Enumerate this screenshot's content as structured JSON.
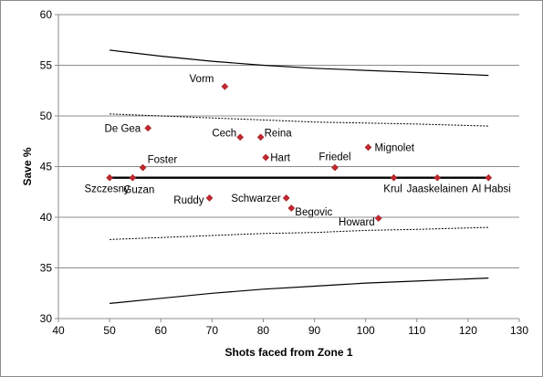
{
  "chart_data": {
    "type": "scatter",
    "xlabel": "Shots faced from Zone 1",
    "ylabel": "Save %",
    "xlim": [
      40,
      130
    ],
    "ylim": [
      30,
      60
    ],
    "x_ticks": [
      40,
      50,
      60,
      70,
      80,
      90,
      100,
      110,
      120,
      130
    ],
    "y_ticks": [
      30,
      35,
      40,
      45,
      50,
      55,
      60
    ],
    "grid": "horizontal",
    "marker_color": "#c0282e",
    "points": [
      {
        "label": "Vorm",
        "x": 72.5,
        "y": 52.9
      },
      {
        "label": "De Gea",
        "x": 57.5,
        "y": 48.8
      },
      {
        "label": "Cech",
        "x": 75.5,
        "y": 47.9
      },
      {
        "label": "Reina",
        "x": 79.5,
        "y": 47.9
      },
      {
        "label": "Hart",
        "x": 80.5,
        "y": 45.9
      },
      {
        "label": "Friedel",
        "x": 94,
        "y": 44.9
      },
      {
        "label": "Mignolet",
        "x": 100.5,
        "y": 46.9
      },
      {
        "label": "Foster",
        "x": 56.5,
        "y": 44.9
      },
      {
        "label": "Szczesny",
        "x": 50,
        "y": 43.9
      },
      {
        "label": "Guzan",
        "x": 54.5,
        "y": 43.9
      },
      {
        "label": "Krul",
        "x": 105.5,
        "y": 43.9
      },
      {
        "label": "Jaaskelainen",
        "x": 114,
        "y": 43.9
      },
      {
        "label": "Al Habsi",
        "x": 124,
        "y": 43.9
      },
      {
        "label": "Ruddy",
        "x": 69.5,
        "y": 41.9
      },
      {
        "label": "Schwarzer",
        "x": 84.5,
        "y": 41.9
      },
      {
        "label": "Begovic",
        "x": 85.5,
        "y": 40.9
      },
      {
        "label": "Howard",
        "x": 102.5,
        "y": 39.9
      }
    ],
    "mean_line": {
      "x": [
        50,
        124
      ],
      "y": [
        43.9,
        43.9
      ]
    },
    "bounds": {
      "x": [
        50,
        60,
        70,
        80,
        90,
        100,
        110,
        124
      ],
      "outer_upper": [
        56.5,
        55.9,
        55.4,
        55.0,
        54.7,
        54.5,
        54.3,
        54.0
      ],
      "inner_upper": [
        50.2,
        50.0,
        49.8,
        49.6,
        49.4,
        49.3,
        49.2,
        49.0
      ],
      "inner_lower": [
        37.8,
        38.0,
        38.2,
        38.4,
        38.5,
        38.7,
        38.8,
        39.0
      ],
      "outer_lower": [
        31.5,
        32.0,
        32.5,
        32.9,
        33.2,
        33.5,
        33.7,
        34.0
      ]
    }
  }
}
